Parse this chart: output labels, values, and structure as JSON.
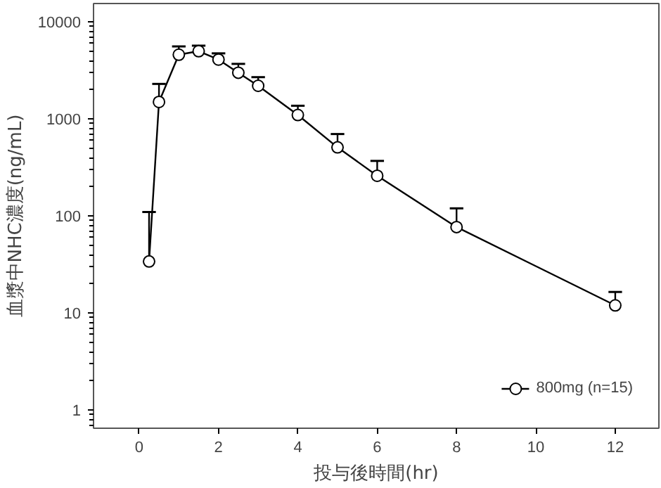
{
  "chart_data": {
    "type": "line",
    "xlabel": "投与後時間(hr)",
    "ylabel": "血漿中NHC濃度(ng/mL)",
    "x": [
      0.25,
      0.5,
      1,
      1.5,
      2,
      2.5,
      3,
      4,
      5,
      6,
      8,
      12
    ],
    "series": [
      {
        "name": "800mg (n=15)",
        "color": "#000000",
        "values": [
          34,
          1500,
          4600,
          5000,
          4100,
          3000,
          2200,
          1100,
          510,
          260,
          77,
          12
        ],
        "errors": [
          [
            34,
            110
          ],
          [
            1500,
            2300
          ],
          [
            4600,
            5600
          ],
          [
            5000,
            5700
          ],
          [
            4100,
            4750
          ],
          [
            3000,
            3700
          ],
          [
            2200,
            2700
          ],
          [
            1100,
            1370
          ],
          [
            510,
            700
          ],
          [
            260,
            370
          ],
          [
            77,
            120
          ],
          [
            12,
            16.5
          ]
        ]
      }
    ],
    "log": "y",
    "xlim": [
      -1.15,
      13.1
    ],
    "xticks": [
      0,
      2,
      4,
      6,
      8,
      10,
      12
    ],
    "ylim": [
      0.65,
      15500
    ],
    "yticks": [
      1,
      10,
      100,
      1000,
      10000
    ],
    "grid": false,
    "legend": "bottom right",
    "marker": "circle",
    "line_style": "solid"
  }
}
